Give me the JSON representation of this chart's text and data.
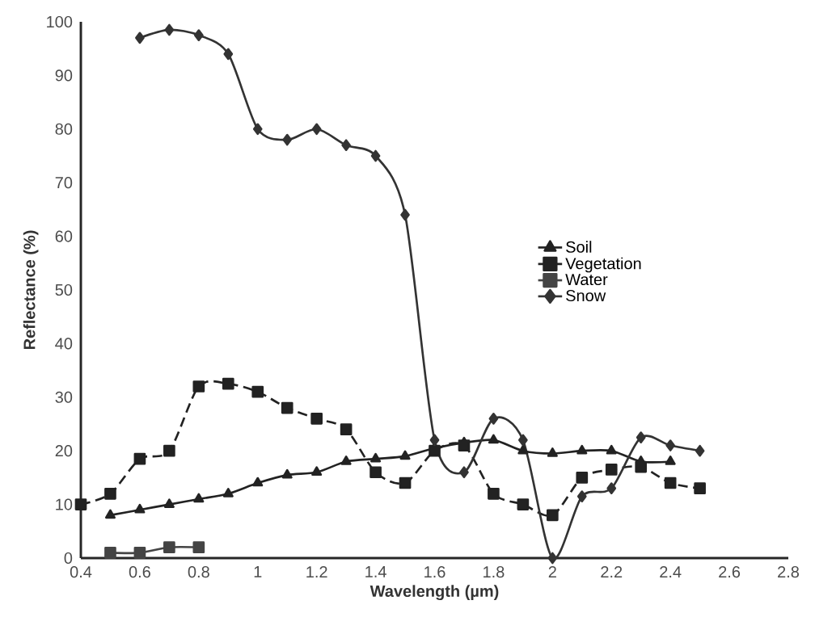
{
  "chart_data": {
    "type": "line",
    "xlabel": "Wavelength (µm)",
    "ylabel": "Reflectance (%)",
    "xlim": [
      0.4,
      2.8
    ],
    "xticks": [
      0.4,
      0.6,
      0.8,
      1,
      1.2,
      1.4,
      1.6,
      1.8,
      2,
      2.2,
      2.4,
      2.6,
      2.8
    ],
    "ylim": [
      0,
      100
    ],
    "yticks": [
      0,
      10,
      20,
      30,
      40,
      50,
      60,
      70,
      80,
      90,
      100
    ],
    "legend": "right",
    "grid": false,
    "series": [
      {
        "name": "Soil",
        "color": "#222222",
        "marker": "triangle",
        "line_style": "solid",
        "x": [
          0.5,
          0.6,
          0.7,
          0.8,
          0.9,
          1.0,
          1.1,
          1.2,
          1.3,
          1.4,
          1.5,
          1.6,
          1.7,
          1.8,
          1.9,
          2.0,
          2.1,
          2.2,
          2.3,
          2.4
        ],
        "values": [
          8,
          9,
          10,
          11,
          12,
          14,
          15.5,
          16,
          18,
          18.5,
          19,
          20.5,
          21.5,
          22,
          20,
          19.5,
          20,
          20,
          18,
          18
        ]
      },
      {
        "name": "Vegetation",
        "color": "#222222",
        "marker": "square",
        "line_style": "dashed",
        "x": [
          0.4,
          0.5,
          0.6,
          0.7,
          0.8,
          0.9,
          1.0,
          1.1,
          1.2,
          1.3,
          1.4,
          1.5,
          1.6,
          1.7,
          1.8,
          1.9,
          2.0,
          2.1,
          2.2,
          2.3,
          2.4,
          2.5
        ],
        "values": [
          10,
          12,
          18.5,
          20,
          32,
          32.5,
          31,
          28,
          26,
          24,
          16,
          14,
          20,
          21,
          12,
          10,
          8,
          15,
          16.5,
          17,
          14,
          13
        ]
      },
      {
        "name": "Water",
        "color": "#444444",
        "marker": "square",
        "line_style": "solid",
        "x": [
          0.5,
          0.6,
          0.7,
          0.8
        ],
        "values": [
          1,
          1,
          2,
          2
        ]
      },
      {
        "name": "Snow",
        "color": "#333333",
        "marker": "diamond",
        "line_style": "solid",
        "x": [
          0.6,
          0.7,
          0.8,
          0.9,
          1.0,
          1.1,
          1.2,
          1.3,
          1.4,
          1.5,
          1.6,
          1.7,
          1.8,
          1.9,
          2.0,
          2.1,
          2.2,
          2.3,
          2.4,
          2.5
        ],
        "values": [
          97,
          98.5,
          97.5,
          94,
          80,
          78,
          80,
          77,
          75,
          64,
          22,
          16,
          26,
          22,
          0,
          11.5,
          13,
          22.5,
          21,
          20
        ]
      }
    ]
  }
}
